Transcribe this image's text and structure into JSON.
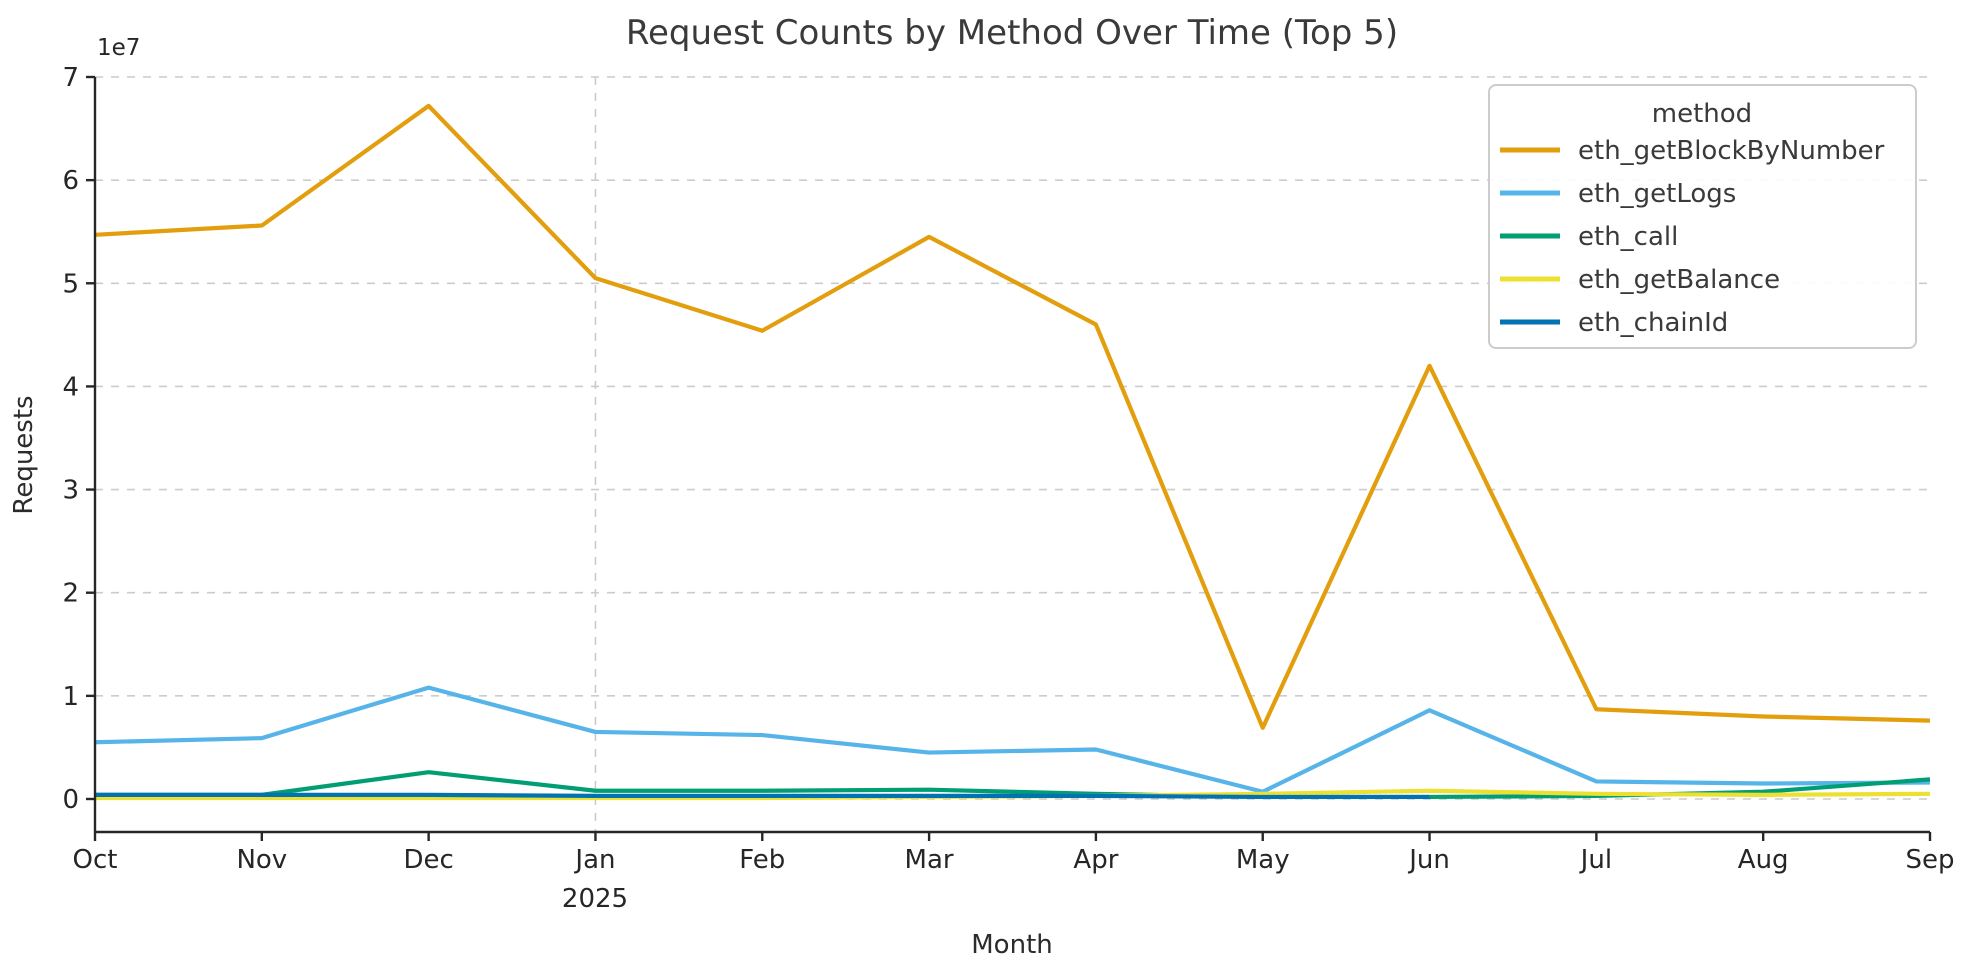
{
  "chart_data": {
    "type": "line",
    "title": "Request Counts by Method Over Time (Top 5)",
    "xlabel": "Month",
    "ylabel": "Requests",
    "y_offset_text": "1e7",
    "x_tick_labels": [
      "Oct",
      "Nov",
      "Dec",
      "Jan",
      "Feb",
      "Mar",
      "Apr",
      "May",
      "Jun",
      "Jul",
      "Aug",
      "Sep"
    ],
    "x_year_annotation": {
      "label": "2025",
      "month_index": 3
    },
    "y_tick_labels": [
      "0",
      "1",
      "2",
      "3",
      "4",
      "5",
      "6",
      "7"
    ],
    "y_tick_values": [
      0,
      10000000,
      20000000,
      30000000,
      40000000,
      50000000,
      60000000,
      70000000
    ],
    "ylim": [
      -3200000,
      70000000
    ],
    "grid": {
      "horizontal": true,
      "vertical_at_month_indices": [
        3
      ],
      "style": "dashed",
      "color": "#cccccc"
    },
    "legend": {
      "title": "method",
      "position": "upper right"
    },
    "axis_color": "#262626",
    "series": [
      {
        "name": "eth_getBlockByNumber",
        "color": "#E39E0D",
        "values": [
          54700000,
          55600000,
          67200000,
          50500000,
          45400000,
          54500000,
          46000000,
          6900000,
          42000000,
          8700000,
          8000000,
          7600000
        ]
      },
      {
        "name": "eth_getLogs",
        "color": "#56B4E9",
        "values": [
          5500000,
          5900000,
          10800000,
          6500000,
          6200000,
          4500000,
          4800000,
          700000,
          8600000,
          1700000,
          1500000,
          1600000
        ]
      },
      {
        "name": "eth_call",
        "color": "#029E73",
        "values": [
          400000,
          400000,
          2600000,
          800000,
          800000,
          900000,
          500000,
          200000,
          200000,
          300000,
          700000,
          1900000
        ]
      },
      {
        "name": "eth_getBalance",
        "color": "#ECE133",
        "values": [
          100000,
          100000,
          100000,
          100000,
          100000,
          200000,
          300000,
          500000,
          800000,
          500000,
          400000,
          500000
        ]
      },
      {
        "name": "eth_chainId",
        "color": "#0173B2",
        "values": [
          400000,
          400000,
          400000,
          300000,
          300000,
          300000,
          300000,
          200000,
          200000,
          null,
          null,
          null
        ]
      }
    ]
  }
}
